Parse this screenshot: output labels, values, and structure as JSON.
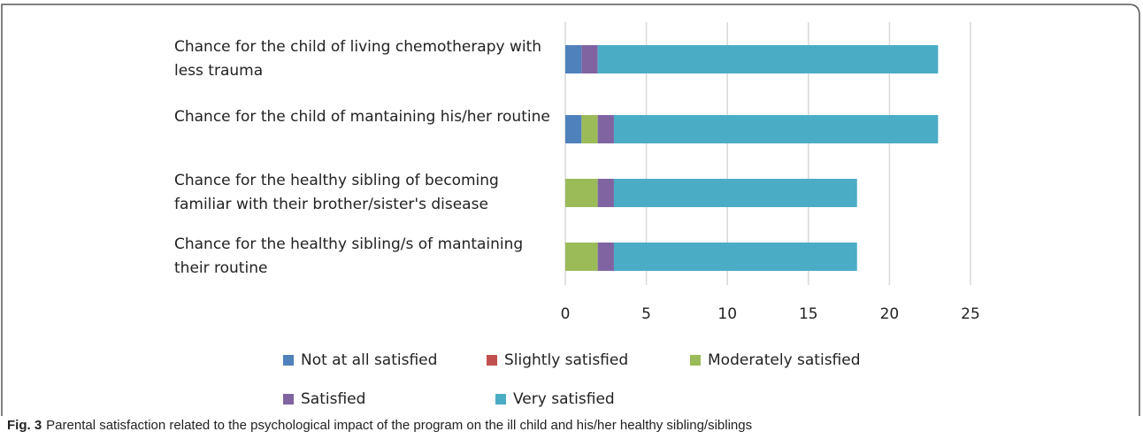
{
  "chart_data": {
    "type": "stacked_barh",
    "categories": [
      "Chance for the child of living chemotherapy with less trauma",
      "Chance for the child of mantaining his/her routine",
      "Chance for the healthy sibling of becoming familiar with their brother/sister's disease",
      "Chance for the healthy sibling/s of mantaining their routine"
    ],
    "series": [
      {
        "name": "Not at all satisfied",
        "color": "#4f81bd",
        "values": [
          1,
          1,
          0,
          0
        ]
      },
      {
        "name": "Slightly satisfied",
        "color": "#c0504d",
        "values": [
          0,
          0,
          0,
          0
        ]
      },
      {
        "name": "Moderately satisfied",
        "color": "#9bbb59",
        "values": [
          0,
          1,
          2,
          2
        ]
      },
      {
        "name": "Satisfied",
        "color": "#8064a2",
        "values": [
          1,
          1,
          1,
          1
        ]
      },
      {
        "name": "Very satisfied",
        "color": "#4bacc6",
        "values": [
          21,
          20,
          15,
          15
        ]
      }
    ],
    "xlim": [
      0,
      25
    ],
    "xticks": [
      0,
      5,
      10,
      15,
      20,
      25
    ],
    "grid": true
  },
  "caption": {
    "label": "Fig. 3",
    "text": "Parental satisfaction related to the psychological impact of the program on the ill child and his/her healthy sibling/siblings"
  }
}
